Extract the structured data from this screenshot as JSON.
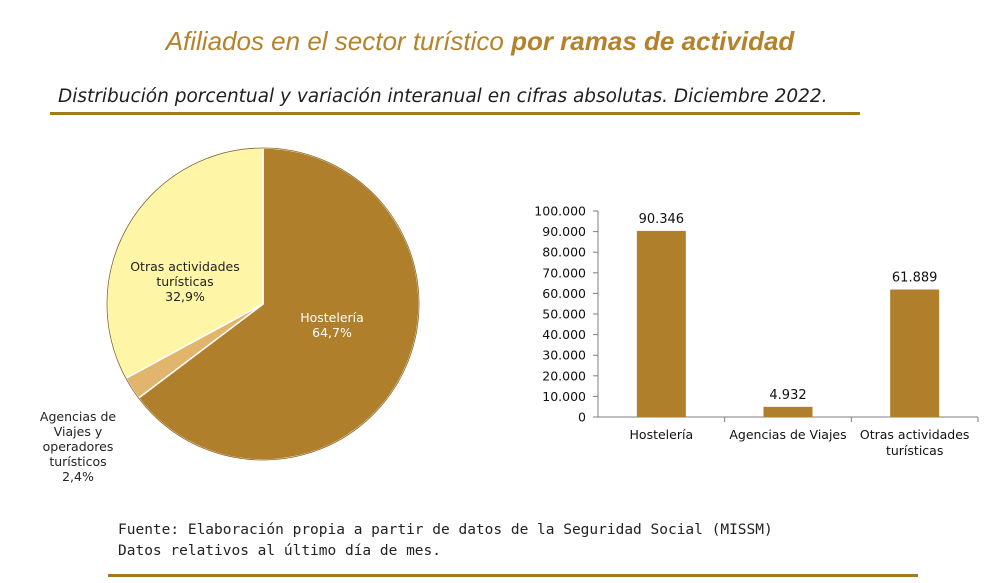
{
  "header": {
    "title_regular": "Afiliados en el sector turístico",
    "title_bold": "por ramas de actividad",
    "subtitle": "Distribución porcentual y variación interanual en cifras absolutas. Diciembre 2022."
  },
  "colors": {
    "brown": "#b07f2b",
    "light_yellow": "#fef6a6",
    "tan": "#e1b56b",
    "rule": "#a6781f"
  },
  "chart_data": [
    {
      "type": "pie",
      "title": "",
      "slices": [
        {
          "label": "Hostelería",
          "value": 64.7,
          "value_label": "64,7%",
          "color": "#b07f2b",
          "label_color": "#ffffff"
        },
        {
          "label": "Agencias de Viajes y operadores turísticos",
          "value": 2.4,
          "value_label": "2,4%",
          "color": "#e1b56b",
          "label_color": "#222222"
        },
        {
          "label": "Otras actividades turísticas",
          "value": 32.9,
          "value_label": "32,9%",
          "color": "#fef6a6",
          "label_color": "#222222"
        }
      ]
    },
    {
      "type": "bar",
      "title": "",
      "categories": [
        "Hostelería",
        "Agencias de Viajes",
        "Otras actividades turísticas"
      ],
      "values": [
        90346,
        4932,
        61889
      ],
      "data_labels": [
        "90.346",
        "4.932",
        "61.889"
      ],
      "ylim": [
        0,
        100000
      ],
      "yticks": [
        0,
        10000,
        20000,
        30000,
        40000,
        50000,
        60000,
        70000,
        80000,
        90000,
        100000
      ],
      "ytick_labels": [
        "0",
        "10.000",
        "20.000",
        "30.000",
        "40.000",
        "50.000",
        "60.000",
        "70.000",
        "80.000",
        "90.000",
        "100.000"
      ],
      "grid": false,
      "color": "#b07f2b"
    }
  ],
  "footer": {
    "source": "Fuente: Elaboración propia a partir de datos de la Seguridad Social (MISSM)",
    "note": "Datos relativos al último día de mes."
  }
}
